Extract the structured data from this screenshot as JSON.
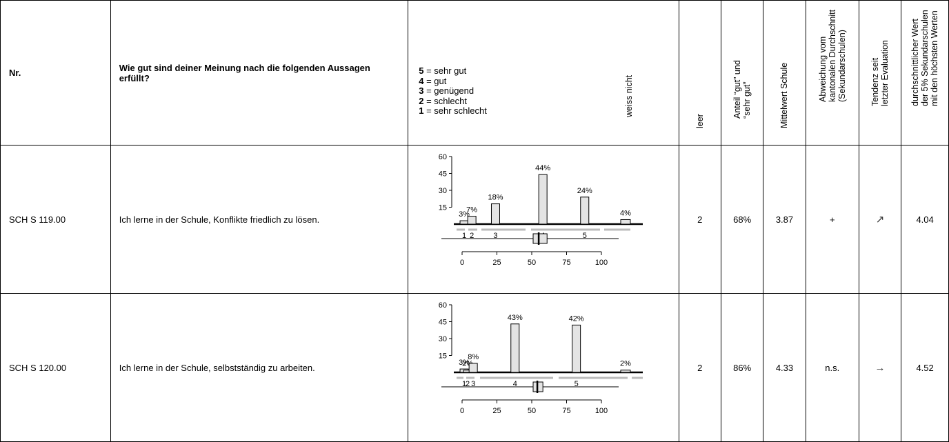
{
  "header": {
    "nr": "Nr.",
    "question": "Wie gut sind deiner Meinung nach die folgenden Aussagen erfüllt?",
    "scale": [
      {
        "num": "5",
        "label": " = sehr gut"
      },
      {
        "num": "4",
        "label": " = gut"
      },
      {
        "num": "3",
        "label": " = genügend"
      },
      {
        "num": "2",
        "label": " = schlecht"
      },
      {
        "num": "1",
        "label": " = sehr schlecht"
      }
    ],
    "weiss_nicht": "weiss nicht",
    "leer": "leer",
    "anteil": "Anteil “gut” und\n“sehr gut”",
    "mittelwert": "Mittelwert Schule",
    "abweichung": "Abweichung vom\nkantonalen Durchschnitt\n(Sekundarschulen)",
    "tendenz": "Tendenz seit\nletzter Evaluation",
    "durchschnitt": "durchschnittlicher Wert\nder 5% Sekundarschulen\nmit den höchsten Werten"
  },
  "rows": [
    {
      "nr": "SCH S 119.00",
      "statement": "Ich lerne in der Schule, Konflikte friedlich zu lösen.",
      "leer": "2",
      "anteil": "68%",
      "mittelwert": "3.87",
      "abweichung": "+",
      "tendenz": "↗",
      "top5": "4.04"
    },
    {
      "nr": "SCH S 120.00",
      "statement": "Ich lerne in der Schule, selbstständig zu arbeiten.",
      "leer": "2",
      "anteil": "86%",
      "mittelwert": "4.33",
      "abweichung": "n.s.",
      "tendenz": "→",
      "top5": "4.52"
    }
  ],
  "chart_data": [
    {
      "type": "bar",
      "categories": [
        "1",
        "2",
        "3",
        "4",
        "5",
        "weiss nicht"
      ],
      "values": [
        3,
        7,
        18,
        44,
        24,
        4
      ],
      "labels": [
        "3%",
        "7%",
        "18%",
        "44%",
        "24%",
        "4%"
      ],
      "yticks": [
        "60",
        "45",
        "30",
        "15"
      ],
      "ylim": [
        0,
        60
      ],
      "boxplot": {
        "q1": 51,
        "median": 55,
        "q3": 61
      },
      "xticks": [
        "0",
        "25",
        "50",
        "75",
        "100"
      ]
    },
    {
      "type": "bar",
      "categories": [
        "1",
        "2",
        "3",
        "4",
        "5",
        "weiss nicht"
      ],
      "values": [
        3,
        2,
        8,
        43,
        42,
        2
      ],
      "labels": [
        "3%",
        "2%",
        "8%",
        "43%",
        "42%",
        "2%"
      ],
      "yticks": [
        "60",
        "45",
        "30",
        "15"
      ],
      "ylim": [
        0,
        60
      ],
      "boxplot": {
        "q1": 51,
        "median": 54,
        "q3": 58
      },
      "xticks": [
        "0",
        "25",
        "50",
        "75",
        "100"
      ]
    }
  ]
}
